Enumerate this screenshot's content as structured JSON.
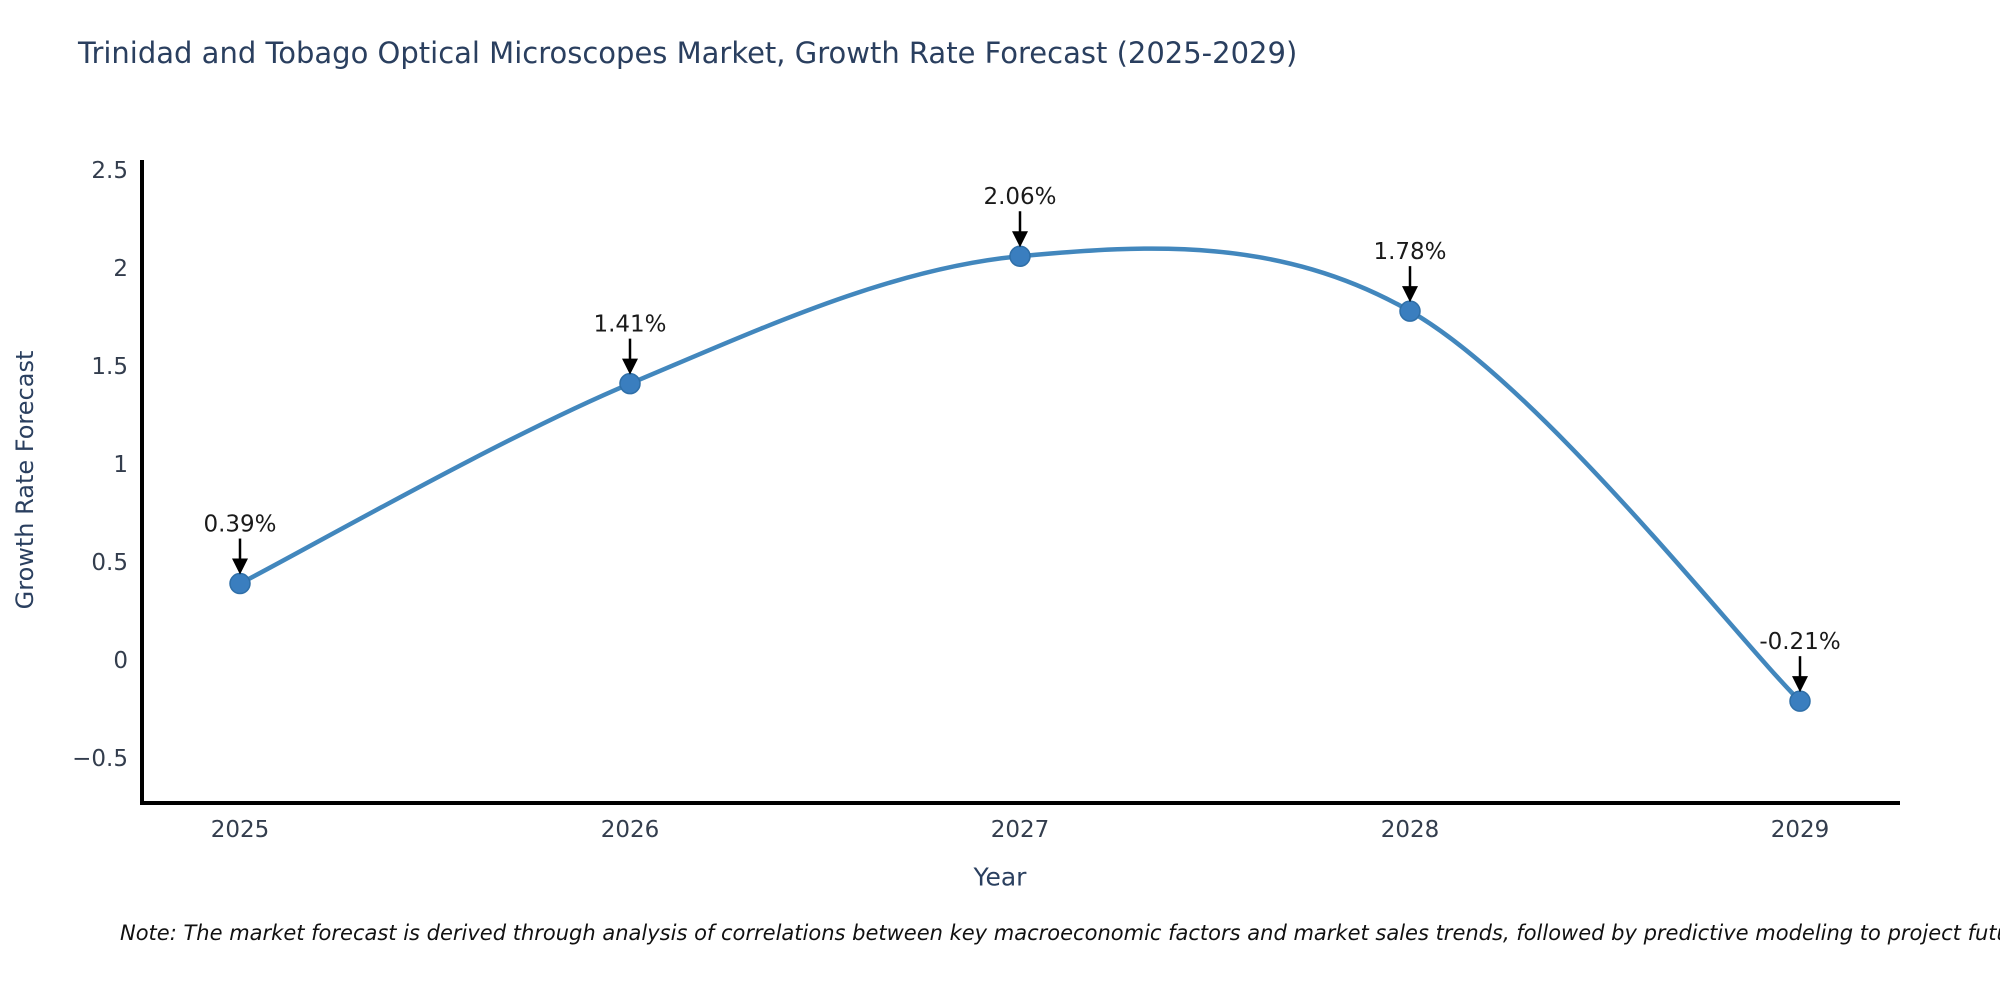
{
  "chart_data": {
    "type": "line",
    "line_shape": "spline",
    "title": "Trinidad and Tobago Optical Microscopes Market, Growth Rate Forecast (2025-2029)",
    "xlabel": "Year",
    "ylabel": "Growth Rate Forecast",
    "note": "Note: The market forecast is derived through analysis of correlations between key macroeconomic factors and market sales trends, followed by predictive modeling to project future sales",
    "categories": [
      "2025",
      "2026",
      "2027",
      "2028",
      "2029"
    ],
    "values": [
      0.39,
      1.41,
      2.06,
      1.78,
      -0.21
    ],
    "point_labels": [
      "0.39%",
      "1.41%",
      "2.06%",
      "1.78%",
      "-0.21%"
    ],
    "yticks": [
      2.5,
      2,
      1.5,
      1,
      0.5,
      0,
      -0.5
    ],
    "ylim": [
      -0.73,
      2.55
    ],
    "grid": false,
    "legend": "none",
    "markers": true,
    "annotations_arrow": true,
    "colors": {
      "line": "#4287bd",
      "marker_fill": "#3a7ebf",
      "marker_edge": "#2f6fa8",
      "axis_line": "#000000",
      "title_text": "#2a3f5f",
      "tick_text": "#333d4d",
      "annotation_text": "#1a1a1a",
      "arrow": "#000000",
      "background": "#ffffff"
    }
  }
}
